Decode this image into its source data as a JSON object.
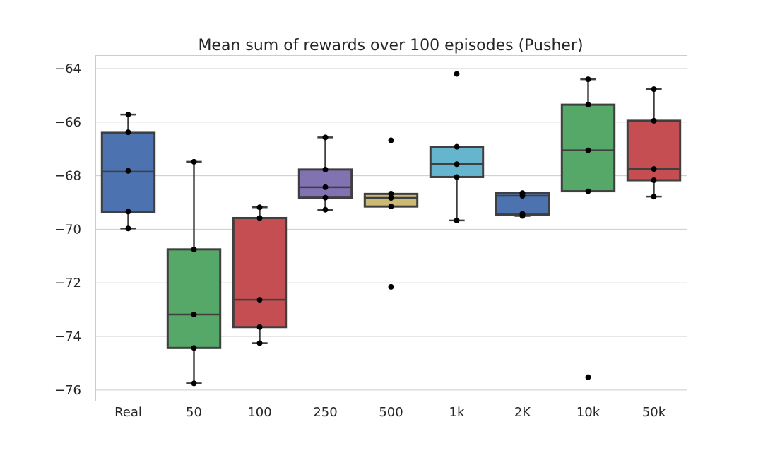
{
  "chart_data": {
    "type": "box",
    "title": "Mean sum of rewards over 100 episodes (Pusher)",
    "xlabel": "",
    "ylabel": "",
    "ylim": [
      -76.4,
      -63.5
    ],
    "yticks": [
      -64,
      -66,
      -68,
      -70,
      -72,
      -74,
      -76
    ],
    "ytick_labels": [
      "−64",
      "−66",
      "−68",
      "−70",
      "−72",
      "−74",
      "−76"
    ],
    "grid": true,
    "categories": [
      "Real",
      "50",
      "100",
      "250",
      "500",
      "1k",
      "2K",
      "10k",
      "50k"
    ],
    "boxes": [
      {
        "color": "#4c72b0",
        "q1": -69.35,
        "median": -67.85,
        "q3": -66.4,
        "whislo": -69.97,
        "whishi": -65.72,
        "points": [
          -65.72,
          -66.38,
          -67.82,
          -69.34,
          -69.97
        ]
      },
      {
        "color": "#55a868",
        "q1": -74.43,
        "median": -73.18,
        "q3": -70.75,
        "whislo": -75.75,
        "whishi": -67.48,
        "points": [
          -67.48,
          -70.75,
          -73.18,
          -74.43,
          -75.75
        ]
      },
      {
        "color": "#c44e52",
        "q1": -73.65,
        "median": -72.63,
        "q3": -69.58,
        "whislo": -74.25,
        "whishi": -69.18,
        "points": [
          -69.18,
          -69.58,
          -72.63,
          -73.65,
          -74.25
        ]
      },
      {
        "color": "#8172b2",
        "q1": -68.82,
        "median": -68.43,
        "q3": -67.77,
        "whislo": -69.27,
        "whishi": -66.57,
        "points": [
          -66.57,
          -67.77,
          -68.43,
          -68.82,
          -69.27
        ]
      },
      {
        "color": "#ccb974",
        "q1": -69.15,
        "median": -68.83,
        "q3": -68.68,
        "whislo": -69.15,
        "whishi": -68.68,
        "points": [
          -66.68,
          -68.67,
          -68.83,
          -69.15,
          -72.15
        ]
      },
      {
        "color": "#64b5cd",
        "q1": -68.05,
        "median": -67.57,
        "q3": -66.92,
        "whislo": -69.67,
        "whishi": -66.92,
        "points": [
          -64.2,
          -66.92,
          -67.57,
          -68.05,
          -69.67
        ]
      },
      {
        "color": "#4c72b0",
        "q1": -69.45,
        "median": -68.75,
        "q3": -68.65,
        "whislo": -69.5,
        "whishi": -68.65,
        "points": [
          -68.65,
          -68.66,
          -68.75,
          -69.42,
          -69.5
        ]
      },
      {
        "color": "#55a868",
        "q1": -68.58,
        "median": -67.05,
        "q3": -65.35,
        "whislo": -68.58,
        "whishi": -64.4,
        "points": [
          -64.4,
          -65.35,
          -67.05,
          -68.58,
          -75.52
        ]
      },
      {
        "color": "#c44e52",
        "q1": -68.17,
        "median": -67.75,
        "q3": -65.95,
        "whislo": -68.78,
        "whishi": -64.77,
        "points": [
          -64.77,
          -65.95,
          -67.75,
          -68.17,
          -68.78
        ]
      }
    ]
  }
}
